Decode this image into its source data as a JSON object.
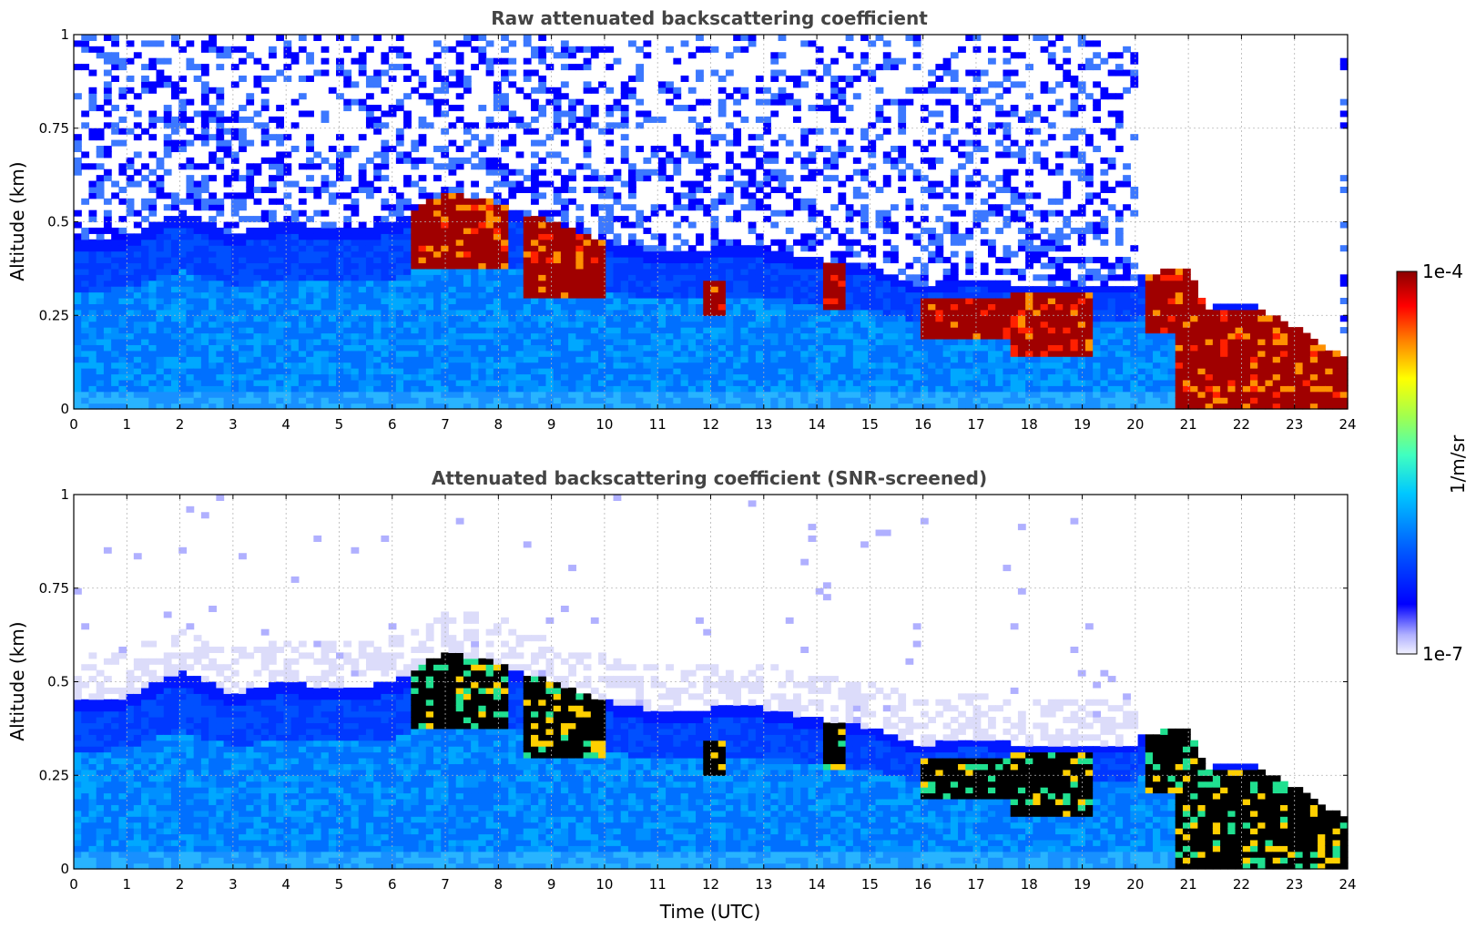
{
  "chart_data": [
    {
      "type": "heatmap",
      "title": "Raw attenuated backscattering coefficient",
      "xlabel": "",
      "ylabel": "Altitude (km)",
      "xlim": [
        0,
        24
      ],
      "ylim": [
        0,
        1
      ],
      "xticks": [
        "0",
        "1",
        "2",
        "3",
        "4",
        "5",
        "6",
        "7",
        "8",
        "9",
        "10",
        "11",
        "12",
        "13",
        "14",
        "15",
        "16",
        "17",
        "18",
        "19",
        "20",
        "21",
        "22",
        "23",
        "24"
      ],
      "yticks": [
        "0",
        "0.25",
        "0.5",
        "0.75",
        "1"
      ],
      "grid": true,
      "screened": false,
      "boundary_layer_top_km": [
        [
          0,
          0.45
        ],
        [
          1,
          0.46
        ],
        [
          2,
          0.53
        ],
        [
          3,
          0.47
        ],
        [
          4,
          0.5
        ],
        [
          5,
          0.48
        ],
        [
          6,
          0.5
        ],
        [
          7,
          0.58
        ],
        [
          8,
          0.55
        ],
        [
          9,
          0.5
        ],
        [
          10,
          0.45
        ],
        [
          11,
          0.42
        ],
        [
          12,
          0.43
        ],
        [
          13,
          0.43
        ],
        [
          14,
          0.4
        ],
        [
          15,
          0.38
        ],
        [
          16,
          0.33
        ],
        [
          17,
          0.35
        ],
        [
          18,
          0.33
        ],
        [
          19,
          0.33
        ],
        [
          20,
          0.33
        ],
        [
          20.1,
          0.36
        ],
        [
          21,
          0.38
        ],
        [
          21.3,
          0.27
        ],
        [
          22,
          0.29
        ],
        [
          23,
          0.22
        ],
        [
          24,
          0.13
        ]
      ],
      "cloud_layers": [
        {
          "t0": 6.3,
          "t1": 8.2,
          "base_km": 0.38,
          "top_km": 0.6
        },
        {
          "t0": 8.5,
          "t1": 10.0,
          "base_km": 0.3,
          "top_km": 0.53
        },
        {
          "t0": 11.8,
          "t1": 12.3,
          "base_km": 0.25,
          "top_km": 0.35
        },
        {
          "t0": 14.1,
          "t1": 14.6,
          "base_km": 0.27,
          "top_km": 0.44
        },
        {
          "t0": 16.0,
          "t1": 17.6,
          "base_km": 0.19,
          "top_km": 0.3
        },
        {
          "t0": 17.6,
          "t1": 19.2,
          "base_km": 0.14,
          "top_km": 0.31
        },
        {
          "t0": 20.2,
          "t1": 21.3,
          "base_km": 0.2,
          "top_km": 0.37
        },
        {
          "t0": 20.8,
          "t1": 24.0,
          "base_km": 0.0,
          "top_km": 0.26
        }
      ]
    },
    {
      "type": "heatmap",
      "title": "Attenuated backscattering coefficient (SNR-screened)",
      "xlabel": "Time (UTC)",
      "ylabel": "Altitude (km)",
      "xlim": [
        0,
        24
      ],
      "ylim": [
        0,
        1
      ],
      "xticks": [
        "0",
        "1",
        "2",
        "3",
        "4",
        "5",
        "6",
        "7",
        "8",
        "9",
        "10",
        "11",
        "12",
        "13",
        "14",
        "15",
        "16",
        "17",
        "18",
        "19",
        "20",
        "21",
        "22",
        "23",
        "24"
      ],
      "yticks": [
        "0",
        "0.25",
        "0.5",
        "0.75",
        "1"
      ],
      "grid": true,
      "screened": true
    }
  ],
  "colorbar": {
    "label": "1/m/sr",
    "max_label": "1e-4",
    "min_label": "1e-7",
    "colormap": [
      "#8b0000",
      "#ff0000",
      "#ff8c00",
      "#ffff00",
      "#7fff7f",
      "#00ffff",
      "#00a0ff",
      "#0040ff",
      "#0000ff",
      "#e8e8ff"
    ]
  }
}
